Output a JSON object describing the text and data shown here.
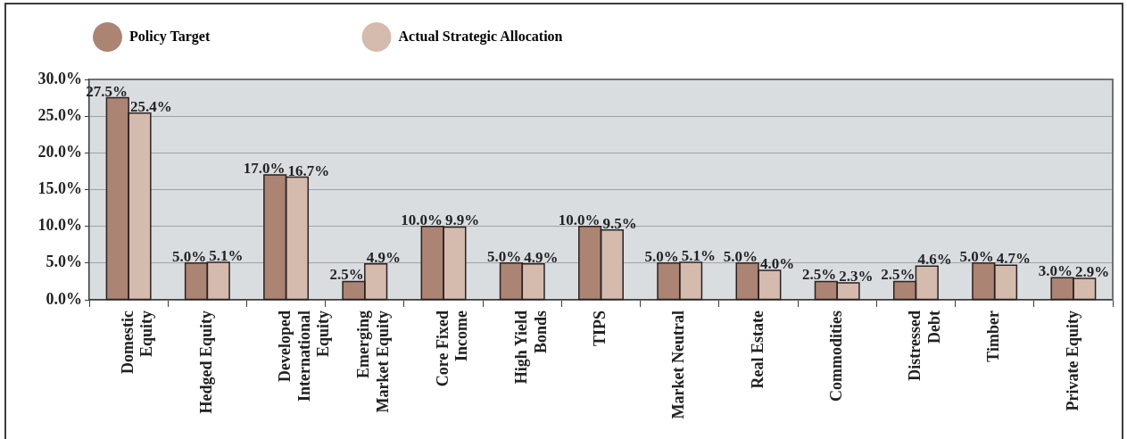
{
  "chart_data": {
    "type": "bar",
    "categories": [
      "Domestic Equity",
      "Hedged Equity",
      "Developed International Equity",
      "Emerging Market Equity",
      "Core Fixed Income",
      "High Yield Bonds",
      "TIPS",
      "Market Neutral",
      "Real Estate",
      "Commodities",
      "Distressed Debt",
      "Timber",
      "Private Equity"
    ],
    "series": [
      {
        "name": "Policy Target",
        "color": "#ab8474",
        "values": [
          27.5,
          5.0,
          17.0,
          2.5,
          10.0,
          5.0,
          10.0,
          5.0,
          5.0,
          2.5,
          2.5,
          5.0,
          3.0
        ],
        "value_labels": [
          "27.5%",
          "5.0%",
          "17.0%",
          "2.5%",
          "10.0%",
          "5.0%",
          "10.0%",
          "5.0%",
          "5.0%",
          "2.5%",
          "2.5%",
          "5.0%",
          "3.0%"
        ]
      },
      {
        "name": "Actual Strategic Allocation",
        "color": "#d5baae",
        "values": [
          25.4,
          5.1,
          16.7,
          4.9,
          9.9,
          4.9,
          9.5,
          5.1,
          4.0,
          2.3,
          4.6,
          4.7,
          2.9
        ],
        "value_labels": [
          "25.4%",
          "5.1%",
          "16.7%",
          "4.9%",
          "9.9%",
          "4.9%",
          "9.5%",
          "5.1%",
          "4.0%",
          "2.3%",
          "4.6%",
          "4.7%",
          "2.9%"
        ]
      }
    ],
    "ylim": [
      0,
      30
    ],
    "yticks": [
      {
        "value": 0,
        "label": "0.0%"
      },
      {
        "value": 5,
        "label": "5.0%"
      },
      {
        "value": 10,
        "label": "10.0%"
      },
      {
        "value": 15,
        "label": "15.0%"
      },
      {
        "value": 20,
        "label": "20.0%"
      },
      {
        "value": 25,
        "label": "25.0%"
      },
      {
        "value": 30,
        "label": "30.0%"
      }
    ],
    "grid": "y",
    "legend": "top left"
  }
}
